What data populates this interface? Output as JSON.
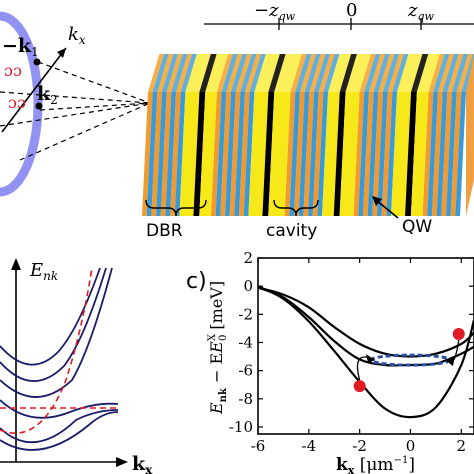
{
  "top_left": {
    "k_minus_1": "−k",
    "k_minus_1_sub": "1",
    "k_2": "k",
    "k_2_sub": "2",
    "k_x": "k",
    "k_x_sub": "x"
  },
  "structure": {
    "z_minus": "−z",
    "z_zero": "0",
    "z_plus": "z",
    "z_sub": "qw",
    "dbr_label": "DBR",
    "cavity_label": "cavity",
    "qw_label": "QW",
    "colors": {
      "yellow": "#f7e81a",
      "blue": "#3a9ad8",
      "orange": "#f29a2e",
      "black": "#000000"
    }
  },
  "panel_b": {
    "ylabel_main": "E",
    "ylabel_sub": "nk",
    "xlabel_main": "k",
    "xlabel_sub": "x"
  },
  "panel_c": {
    "letter": "c)",
    "ylabel": "E",
    "ylabel_sub1": "nk",
    "ylabel_minus": " − E",
    "ylabel_sup": "X",
    "ylabel_sub2": "0",
    "ylabel_unit": " [meV]",
    "xlabel": "k",
    "xlabel_sub": "x",
    "xlabel_unit": " [μm",
    "xlabel_sup": "−1",
    "xlabel_close": "]"
  },
  "chart_data": {
    "type": "line",
    "xlabel": "kx [μm⁻¹]",
    "ylabel": "Enk − E0X [meV]",
    "xlim": [
      -6,
      2.5
    ],
    "ylim": [
      -10.5,
      2
    ],
    "x_ticks": [
      "-6",
      "-4",
      "-2",
      "0",
      "2"
    ],
    "x_tick_values": [
      -6,
      -4,
      -2,
      0,
      2
    ],
    "y_ticks": [
      "2",
      "0",
      "-2",
      "-4",
      "-6",
      "-8",
      "-10"
    ],
    "y_tick_values": [
      2,
      0,
      -2,
      -4,
      -6,
      -8,
      -10
    ],
    "series": [
      {
        "x": [
          -6,
          -5,
          -4,
          -3,
          -2,
          -1,
          0,
          1,
          2,
          2.5
        ],
        "y": [
          -0.1,
          -0.6,
          -1.5,
          -2.9,
          -4.1,
          -4.8,
          -5.0,
          -4.8,
          -4.1,
          -3.3
        ]
      },
      {
        "x": [
          -6,
          -5,
          -4,
          -3,
          -2,
          -1,
          0,
          1,
          2,
          2.5
        ],
        "y": [
          -0.1,
          -0.8,
          -2.2,
          -3.9,
          -5.2,
          -5.6,
          -5.6,
          -5.5,
          -4.8,
          -4.3
        ]
      },
      {
        "x": [
          -6,
          -5,
          -4,
          -3,
          -2,
          -1,
          0,
          1,
          2,
          2.5
        ],
        "y": [
          0.0,
          -0.9,
          -2.5,
          -4.6,
          -6.8,
          -8.7,
          -9.3,
          -8.6,
          -5.6,
          -2.4
        ]
      }
    ],
    "points": [
      {
        "x": -2.0,
        "y": -7.1
      },
      {
        "x": 1.9,
        "y": -3.4
      }
    ],
    "condensate": {
      "x_center": 0.0,
      "y": -5.25,
      "x_halfwidth": 1.55
    }
  }
}
